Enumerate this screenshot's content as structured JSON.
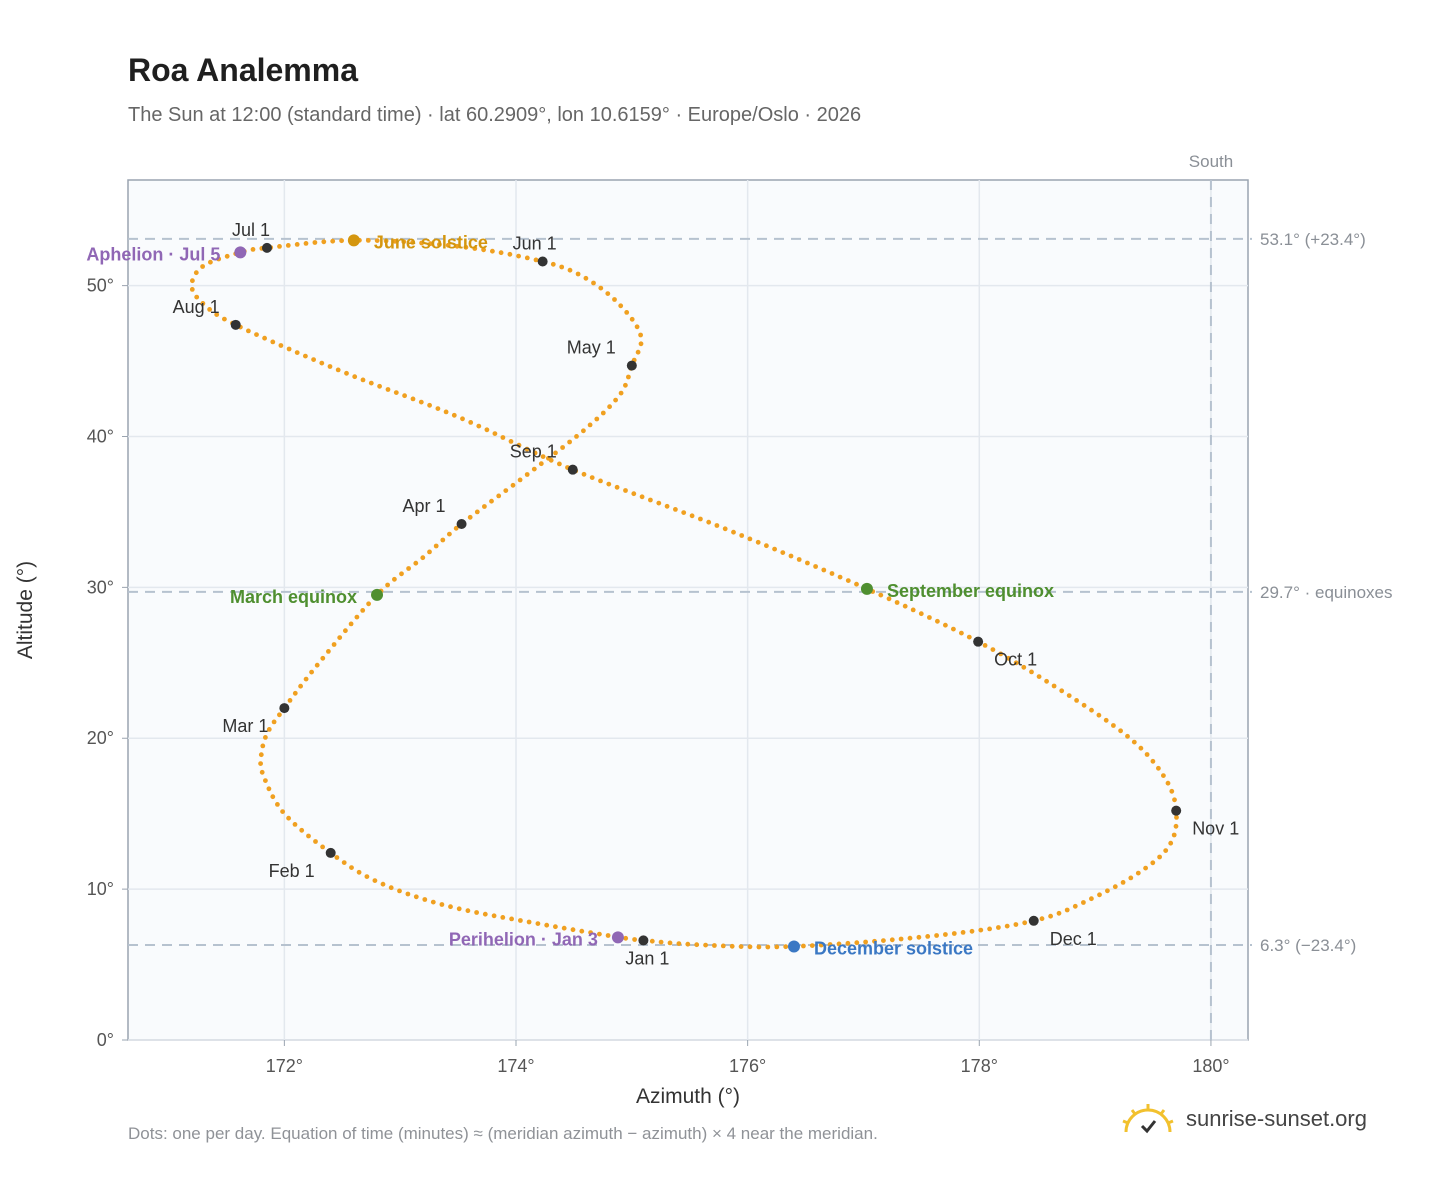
{
  "title": "Roa Analemma",
  "subtitle": "The Sun at 12:00 (standard time) · lat 60.2909°, lon 10.6159° · Europe/Oslo · 2026",
  "footnote": "Dots: one per day. Equation of time (minutes) ≈ (meridian azimuth − azimuth) × 4 near the meridian.",
  "brand": {
    "name": "sunrise-sunset.org",
    "icon": "sun-check-icon"
  },
  "colors": {
    "curve": "#f0a020",
    "month_dot": "#333333",
    "june_solstice": "#d4960f",
    "december_solstice": "#3b78c4",
    "equinox": "#4f8f30",
    "apsis": "#9067b5",
    "reference_line": "#b6c2cf",
    "plot_bg": "#f9fbfd"
  },
  "chart_data": {
    "type": "scatter",
    "title": "Roa Analemma",
    "xlabel": "Azimuth (°)",
    "ylabel": "Altitude (°)",
    "xlim": [
      170.65,
      180.32
    ],
    "ylim": [
      0,
      57
    ],
    "x_ticks": [
      172,
      174,
      176,
      178,
      180
    ],
    "x_tick_labels": [
      "172°",
      "174°",
      "176°",
      "178°",
      "180°"
    ],
    "y_ticks": [
      0,
      10,
      20,
      30,
      40,
      50
    ],
    "y_tick_labels": [
      "0°",
      "10°",
      "20°",
      "30°",
      "40°",
      "50°"
    ],
    "grid": true,
    "meridian": {
      "azimuth": 180,
      "label": "South"
    },
    "reference_lines": [
      {
        "altitude": 53.1,
        "label": "53.1° (+23.4°)"
      },
      {
        "altitude": 29.7,
        "label": "29.7° · equinoxes"
      },
      {
        "altitude": 6.3,
        "label": "6.3° (−23.4°)"
      }
    ],
    "month_markers": [
      {
        "label": "Jan 1",
        "azimuth": 175.1,
        "altitude": 6.6
      },
      {
        "label": "Feb 1",
        "azimuth": 172.4,
        "altitude": 12.4
      },
      {
        "label": "Mar 1",
        "azimuth": 172.0,
        "altitude": 22.0
      },
      {
        "label": "Apr 1",
        "azimuth": 173.53,
        "altitude": 34.2
      },
      {
        "label": "May 1",
        "azimuth": 175.0,
        "altitude": 44.7
      },
      {
        "label": "Jun 1",
        "azimuth": 174.23,
        "altitude": 51.6
      },
      {
        "label": "Jul 1",
        "azimuth": 171.85,
        "altitude": 52.5
      },
      {
        "label": "Aug 1",
        "azimuth": 171.58,
        "altitude": 47.4
      },
      {
        "label": "Sep 1",
        "azimuth": 174.49,
        "altitude": 37.8
      },
      {
        "label": "Oct 1",
        "azimuth": 177.99,
        "altitude": 26.4
      },
      {
        "label": "Nov 1",
        "azimuth": 179.7,
        "altitude": 15.2
      },
      {
        "label": "Dec 1",
        "azimuth": 178.47,
        "altitude": 7.9
      }
    ],
    "events": [
      {
        "label": "June solstice",
        "azimuth": 172.6,
        "altitude": 53.0,
        "color": "#d4960f"
      },
      {
        "label": "December solstice",
        "azimuth": 176.4,
        "altitude": 6.2,
        "color": "#3b78c4"
      },
      {
        "label": "March equinox",
        "azimuth": 172.8,
        "altitude": 29.5,
        "color": "#4f8f30"
      },
      {
        "label": "September equinox",
        "azimuth": 177.03,
        "altitude": 29.9,
        "color": "#4f8f30"
      },
      {
        "label": "Aphelion · Jul 5",
        "azimuth": 171.62,
        "altitude": 52.2,
        "color": "#9067b5"
      },
      {
        "label": "Perihelion · Jan 3",
        "azimuth": 174.88,
        "altitude": 6.8,
        "color": "#9067b5"
      }
    ],
    "daily_path": [
      [
        175.1,
        6.6
      ],
      [
        174.9,
        6.8
      ],
      [
        174.2,
        7.7
      ],
      [
        173.4,
        8.9
      ],
      [
        172.8,
        10.5
      ],
      [
        172.4,
        12.4
      ],
      [
        172.0,
        15.0
      ],
      [
        171.82,
        17.5
      ],
      [
        171.8,
        18.8
      ],
      [
        171.85,
        20.3
      ],
      [
        172.0,
        22.0
      ],
      [
        172.3,
        25.0
      ],
      [
        172.8,
        29.5
      ],
      [
        173.2,
        32.0
      ],
      [
        173.53,
        34.2
      ],
      [
        174.1,
        37.5
      ],
      [
        174.6,
        40.5
      ],
      [
        174.9,
        42.8
      ],
      [
        175.0,
        44.7
      ],
      [
        175.08,
        46.6
      ],
      [
        174.9,
        48.7
      ],
      [
        174.6,
        50.5
      ],
      [
        174.23,
        51.6
      ],
      [
        173.5,
        52.6
      ],
      [
        172.6,
        53.0
      ],
      [
        171.85,
        52.5
      ],
      [
        171.62,
        52.2
      ],
      [
        171.3,
        51.3
      ],
      [
        171.2,
        50.0
      ],
      [
        171.3,
        48.8
      ],
      [
        171.58,
        47.4
      ],
      [
        172.5,
        44.3
      ],
      [
        173.5,
        41.3
      ],
      [
        174.49,
        37.8
      ],
      [
        175.8,
        33.9
      ],
      [
        177.03,
        29.9
      ],
      [
        177.99,
        26.4
      ],
      [
        178.7,
        23.2
      ],
      [
        179.3,
        20.0
      ],
      [
        179.6,
        17.4
      ],
      [
        179.7,
        15.2
      ],
      [
        179.65,
        13.0
      ],
      [
        179.4,
        11.2
      ],
      [
        178.95,
        9.3
      ],
      [
        178.47,
        7.9
      ],
      [
        177.6,
        6.9
      ],
      [
        176.4,
        6.2
      ],
      [
        175.6,
        6.3
      ],
      [
        175.1,
        6.6
      ]
    ]
  }
}
